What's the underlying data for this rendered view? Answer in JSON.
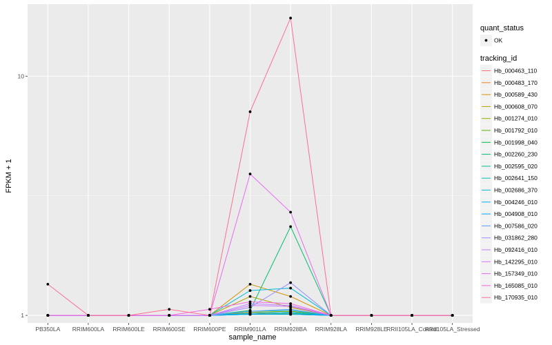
{
  "chart_data": {
    "type": "line",
    "xlabel": "sample_name",
    "ylabel": "FPKM + 1",
    "y_scale": "log10",
    "ylim": [
      0.93,
      20
    ],
    "y_ticks": [
      {
        "value": 1,
        "label": "1"
      },
      {
        "value": 10,
        "label": "10"
      }
    ],
    "grid": true,
    "legend_position": "right",
    "categories": [
      "PB350LA",
      "RRIM600LA",
      "RRIM600LE",
      "RRIM600SE",
      "RRIM600PE",
      "RRIM901LA",
      "RRIM928BA",
      "RRIM928LA",
      "RRIM928LE",
      "RRII105LA_Control",
      "RRII105LA_Stressed"
    ],
    "legend_quant": {
      "title": "quant_status",
      "items": [
        "OK"
      ]
    },
    "legend_tracking": {
      "title": "tracking_id"
    },
    "series": [
      {
        "name": "Hb_000463_110",
        "color": "#F8766D",
        "values": [
          1,
          1,
          1,
          1,
          1,
          1.01,
          1.02,
          1,
          1,
          1,
          1
        ]
      },
      {
        "name": "Hb_000483_170",
        "color": "#E7851E",
        "values": [
          1,
          1,
          1,
          1,
          1,
          1.02,
          1.01,
          1,
          1,
          1,
          1
        ]
      },
      {
        "name": "Hb_000589_430",
        "color": "#D09400",
        "values": [
          1,
          1,
          1,
          1,
          1,
          1.35,
          1.2,
          1,
          1,
          1,
          1
        ]
      },
      {
        "name": "Hb_000608_070",
        "color": "#B2A100",
        "values": [
          1,
          1,
          1,
          1,
          1,
          1.2,
          1.08,
          1,
          1,
          1,
          1
        ]
      },
      {
        "name": "Hb_001274_010",
        "color": "#8BAB00",
        "values": [
          1,
          1,
          1,
          1,
          1,
          1.03,
          1.04,
          1,
          1,
          1,
          1
        ]
      },
      {
        "name": "Hb_001792_010",
        "color": "#55B400",
        "values": [
          1,
          1,
          1,
          1,
          1,
          1.01,
          1.01,
          1,
          1,
          1,
          1
        ]
      },
      {
        "name": "Hb_001998_040",
        "color": "#00BA38",
        "values": [
          1,
          1,
          1,
          1,
          1,
          1.02,
          1.03,
          1,
          1,
          1,
          1
        ]
      },
      {
        "name": "Hb_002260_230",
        "color": "#00BE6C",
        "values": [
          1,
          1,
          1,
          1,
          1,
          1.05,
          2.35,
          1,
          1,
          1,
          1
        ]
      },
      {
        "name": "Hb_002595_020",
        "color": "#00C094",
        "values": [
          1,
          1,
          1,
          1,
          1,
          1.01,
          1.02,
          1,
          1,
          1,
          1
        ]
      },
      {
        "name": "Hb_002641_150",
        "color": "#00C0B8",
        "values": [
          1,
          1,
          1,
          1,
          1,
          1.04,
          1.05,
          1,
          1,
          1,
          1
        ]
      },
      {
        "name": "Hb_002686_370",
        "color": "#00BCD8",
        "values": [
          1,
          1,
          1,
          1,
          1,
          1.27,
          1.3,
          1,
          1,
          1,
          1
        ]
      },
      {
        "name": "Hb_004246_010",
        "color": "#00B4F0",
        "values": [
          1,
          1,
          1,
          1,
          1,
          1.02,
          1.03,
          1,
          1,
          1,
          1
        ]
      },
      {
        "name": "Hb_004908_010",
        "color": "#00A5FF",
        "values": [
          1,
          1,
          1,
          1,
          1,
          1.01,
          1.01,
          1,
          1,
          1,
          1
        ]
      },
      {
        "name": "Hb_007586_020",
        "color": "#619CFF",
        "values": [
          1,
          1,
          1,
          1,
          1,
          1.04,
          1.06,
          1,
          1,
          1,
          1
        ]
      },
      {
        "name": "Hb_031862_280",
        "color": "#9590FF",
        "values": [
          1,
          1,
          1,
          1,
          1,
          1.08,
          1.37,
          1,
          1,
          1,
          1
        ]
      },
      {
        "name": "Hb_092416_010",
        "color": "#B983FF",
        "values": [
          1,
          1,
          1,
          1,
          1,
          1.12,
          1.1,
          1,
          1,
          1,
          1
        ]
      },
      {
        "name": "Hb_142295_010",
        "color": "#D575FE",
        "values": [
          1,
          1,
          1,
          1,
          1,
          1.1,
          1.09,
          1,
          1,
          1,
          1
        ]
      },
      {
        "name": "Hb_157349_010",
        "color": "#E76BF3",
        "values": [
          1,
          1,
          1,
          1,
          1,
          3.9,
          2.7,
          1,
          1,
          1,
          1
        ]
      },
      {
        "name": "Hb_165085_010",
        "color": "#F763E0",
        "values": [
          1,
          1,
          1,
          1,
          1.06,
          1.14,
          1.12,
          1,
          1,
          1,
          1
        ]
      },
      {
        "name": "Hb_170935_010",
        "color": "#FF6C91",
        "values": [
          1.35,
          1,
          1,
          1.06,
          1,
          7.1,
          17.5,
          1,
          1,
          1,
          1
        ]
      }
    ]
  }
}
